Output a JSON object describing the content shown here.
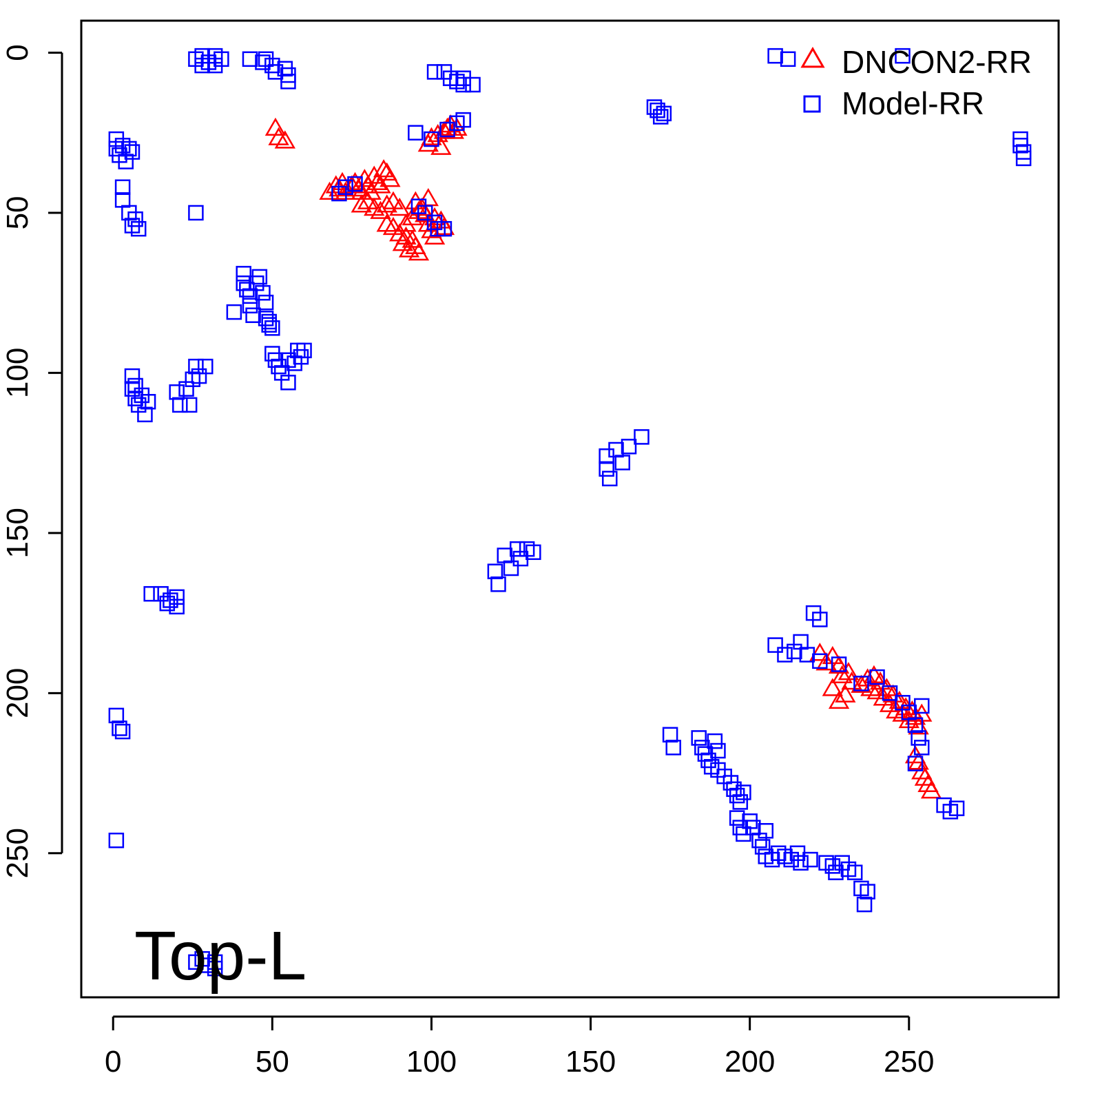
{
  "chart_data": {
    "type": "scatter",
    "title": "",
    "xlabel": "",
    "ylabel": "",
    "xlim": [
      -10,
      297
    ],
    "ylim": [
      -10,
      295
    ],
    "y_reversed": true,
    "x_ticks": [
      0,
      50,
      100,
      150,
      200,
      250
    ],
    "y_ticks": [
      0,
      50,
      100,
      150,
      200,
      250
    ],
    "grid": false,
    "legend_position": "top-right",
    "annotation": "Top-L",
    "series": [
      {
        "name": "DNCON2-RR",
        "marker": "triangle",
        "color": "#ff0000",
        "points": [
          [
            51,
            24
          ],
          [
            52,
            27
          ],
          [
            54,
            28
          ],
          [
            68,
            44
          ],
          [
            70,
            42
          ],
          [
            71,
            43
          ],
          [
            72,
            41
          ],
          [
            73,
            44
          ],
          [
            75,
            42
          ],
          [
            76,
            41
          ],
          [
            77,
            43
          ],
          [
            78,
            44
          ],
          [
            79,
            40
          ],
          [
            80,
            42
          ],
          [
            81,
            44
          ],
          [
            82,
            39
          ],
          [
            83,
            41
          ],
          [
            84,
            42
          ],
          [
            85,
            37
          ],
          [
            86,
            38
          ],
          [
            87,
            40
          ],
          [
            78,
            48
          ],
          [
            80,
            47
          ],
          [
            82,
            49
          ],
          [
            84,
            50
          ],
          [
            86,
            48
          ],
          [
            88,
            47
          ],
          [
            90,
            49
          ],
          [
            86,
            54
          ],
          [
            88,
            55
          ],
          [
            90,
            57
          ],
          [
            91,
            60
          ],
          [
            92,
            58
          ],
          [
            93,
            62
          ],
          [
            94,
            59
          ],
          [
            95,
            61
          ],
          [
            96,
            63
          ],
          [
            92,
            54
          ],
          [
            94,
            52
          ],
          [
            96,
            50
          ],
          [
            98,
            51
          ],
          [
            99,
            54
          ],
          [
            100,
            56
          ],
          [
            101,
            58
          ],
          [
            103,
            53
          ],
          [
            104,
            55
          ],
          [
            95,
            47
          ],
          [
            97,
            49
          ],
          [
            99,
            46
          ],
          [
            101,
            52
          ],
          [
            99,
            29
          ],
          [
            100,
            27
          ],
          [
            102,
            26
          ],
          [
            103,
            30
          ],
          [
            104,
            25
          ],
          [
            105,
            24
          ],
          [
            106,
            23
          ],
          [
            107,
            25
          ],
          [
            108,
            24
          ],
          [
            222,
            188
          ],
          [
            224,
            191
          ],
          [
            226,
            189
          ],
          [
            228,
            192
          ],
          [
            229,
            195
          ],
          [
            231,
            194
          ],
          [
            226,
            199
          ],
          [
            228,
            203
          ],
          [
            230,
            201
          ],
          [
            232,
            197
          ],
          [
            235,
            198
          ],
          [
            237,
            196
          ],
          [
            238,
            199
          ],
          [
            239,
            195
          ],
          [
            240,
            200
          ],
          [
            241,
            197
          ],
          [
            242,
            202
          ],
          [
            243,
            199
          ],
          [
            244,
            204
          ],
          [
            245,
            201
          ],
          [
            246,
            206
          ],
          [
            247,
            203
          ],
          [
            248,
            207
          ],
          [
            249,
            205
          ],
          [
            250,
            209
          ],
          [
            251,
            206
          ],
          [
            252,
            208
          ],
          [
            253,
            211
          ],
          [
            254,
            207
          ],
          [
            252,
            220
          ],
          [
            253,
            222
          ],
          [
            254,
            225
          ],
          [
            255,
            227
          ],
          [
            256,
            229
          ],
          [
            257,
            231
          ]
        ]
      },
      {
        "name": "Model-RR",
        "marker": "square",
        "color": "#0000ff",
        "points": [
          [
            26,
            2
          ],
          [
            28,
            1
          ],
          [
            28,
            4
          ],
          [
            30,
            3
          ],
          [
            32,
            1
          ],
          [
            32,
            4
          ],
          [
            34,
            2
          ],
          [
            43,
            2
          ],
          [
            47,
            3
          ],
          [
            48,
            2
          ],
          [
            50,
            4
          ],
          [
            51,
            6
          ],
          [
            54,
            5
          ],
          [
            55,
            7
          ],
          [
            55,
            9
          ],
          [
            101,
            6
          ],
          [
            104,
            6
          ],
          [
            106,
            8
          ],
          [
            108,
            9
          ],
          [
            110,
            8
          ],
          [
            110,
            10
          ],
          [
            113,
            10
          ],
          [
            170,
            17
          ],
          [
            171,
            18
          ],
          [
            172,
            20
          ],
          [
            173,
            19
          ],
          [
            1,
            27
          ],
          [
            1,
            30
          ],
          [
            2,
            32
          ],
          [
            3,
            29
          ],
          [
            4,
            34
          ],
          [
            5,
            30
          ],
          [
            6,
            31
          ],
          [
            3,
            42
          ],
          [
            3,
            46
          ],
          [
            5,
            50
          ],
          [
            6,
            54
          ],
          [
            7,
            52
          ],
          [
            8,
            55
          ],
          [
            26,
            50
          ],
          [
            208,
            1
          ],
          [
            212,
            2
          ],
          [
            248,
            1
          ],
          [
            285,
            27
          ],
          [
            285,
            29
          ],
          [
            286,
            31
          ],
          [
            286,
            33
          ],
          [
            95,
            25
          ],
          [
            100,
            27
          ],
          [
            105,
            24
          ],
          [
            108,
            22
          ],
          [
            110,
            21
          ],
          [
            71,
            44
          ],
          [
            73,
            42
          ],
          [
            76,
            41
          ],
          [
            96,
            48
          ],
          [
            98,
            50
          ],
          [
            101,
            53
          ],
          [
            102,
            55
          ],
          [
            104,
            55
          ],
          [
            38,
            81
          ],
          [
            41,
            69
          ],
          [
            41,
            72
          ],
          [
            42,
            74
          ],
          [
            43,
            76
          ],
          [
            43,
            79
          ],
          [
            44,
            82
          ],
          [
            45,
            72
          ],
          [
            46,
            70
          ],
          [
            47,
            75
          ],
          [
            48,
            78
          ],
          [
            48,
            83
          ],
          [
            49,
            84
          ],
          [
            49,
            85
          ],
          [
            50,
            86
          ],
          [
            50,
            94
          ],
          [
            51,
            96
          ],
          [
            52,
            98
          ],
          [
            53,
            100
          ],
          [
            55,
            96
          ],
          [
            55,
            103
          ],
          [
            57,
            97
          ],
          [
            58,
            93
          ],
          [
            59,
            95
          ],
          [
            60,
            93
          ],
          [
            6,
            101
          ],
          [
            6,
            105
          ],
          [
            7,
            104
          ],
          [
            7,
            108
          ],
          [
            8,
            110
          ],
          [
            9,
            107
          ],
          [
            10,
            113
          ],
          [
            11,
            109
          ],
          [
            20,
            106
          ],
          [
            21,
            110
          ],
          [
            23,
            105
          ],
          [
            24,
            110
          ],
          [
            25,
            102
          ],
          [
            26,
            98
          ],
          [
            27,
            101
          ],
          [
            29,
            98
          ],
          [
            12,
            169
          ],
          [
            15,
            169
          ],
          [
            17,
            172
          ],
          [
            18,
            171
          ],
          [
            20,
            170
          ],
          [
            20,
            173
          ],
          [
            1,
            207
          ],
          [
            2,
            211
          ],
          [
            3,
            212
          ],
          [
            1,
            246
          ],
          [
            26,
            284
          ],
          [
            28,
            283
          ],
          [
            30,
            285
          ],
          [
            32,
            284
          ],
          [
            32,
            286
          ],
          [
            120,
            162
          ],
          [
            121,
            166
          ],
          [
            123,
            157
          ],
          [
            125,
            161
          ],
          [
            127,
            155
          ],
          [
            128,
            158
          ],
          [
            130,
            155
          ],
          [
            132,
            156
          ],
          [
            155,
            126
          ],
          [
            155,
            130
          ],
          [
            156,
            133
          ],
          [
            158,
            124
          ],
          [
            160,
            128
          ],
          [
            162,
            123
          ],
          [
            166,
            120
          ],
          [
            175,
            213
          ],
          [
            176,
            217
          ],
          [
            184,
            214
          ],
          [
            185,
            217
          ],
          [
            186,
            219
          ],
          [
            187,
            221
          ],
          [
            188,
            223
          ],
          [
            189,
            215
          ],
          [
            190,
            218
          ],
          [
            190,
            224
          ],
          [
            192,
            226
          ],
          [
            194,
            228
          ],
          [
            195,
            230
          ],
          [
            196,
            232
          ],
          [
            197,
            234
          ],
          [
            198,
            231
          ],
          [
            196,
            239
          ],
          [
            197,
            242
          ],
          [
            198,
            244
          ],
          [
            200,
            240
          ],
          [
            201,
            242
          ],
          [
            203,
            246
          ],
          [
            204,
            248
          ],
          [
            205,
            243
          ],
          [
            205,
            251
          ],
          [
            207,
            252
          ],
          [
            209,
            250
          ],
          [
            211,
            251
          ],
          [
            213,
            252
          ],
          [
            215,
            250
          ],
          [
            216,
            253
          ],
          [
            219,
            252
          ],
          [
            224,
            253
          ],
          [
            226,
            254
          ],
          [
            227,
            256
          ],
          [
            229,
            253
          ],
          [
            231,
            255
          ],
          [
            233,
            256
          ],
          [
            235,
            261
          ],
          [
            236,
            266
          ],
          [
            237,
            262
          ],
          [
            220,
            175
          ],
          [
            222,
            177
          ],
          [
            208,
            185
          ],
          [
            211,
            188
          ],
          [
            214,
            187
          ],
          [
            216,
            184
          ],
          [
            218,
            188
          ],
          [
            222,
            190
          ],
          [
            228,
            191
          ],
          [
            235,
            197
          ],
          [
            240,
            195
          ],
          [
            244,
            200
          ],
          [
            248,
            203
          ],
          [
            250,
            206
          ],
          [
            252,
            210
          ],
          [
            254,
            204
          ],
          [
            253,
            214
          ],
          [
            254,
            217
          ],
          [
            252,
            222
          ],
          [
            261,
            235
          ],
          [
            263,
            237
          ],
          [
            265,
            236
          ]
        ]
      }
    ]
  }
}
